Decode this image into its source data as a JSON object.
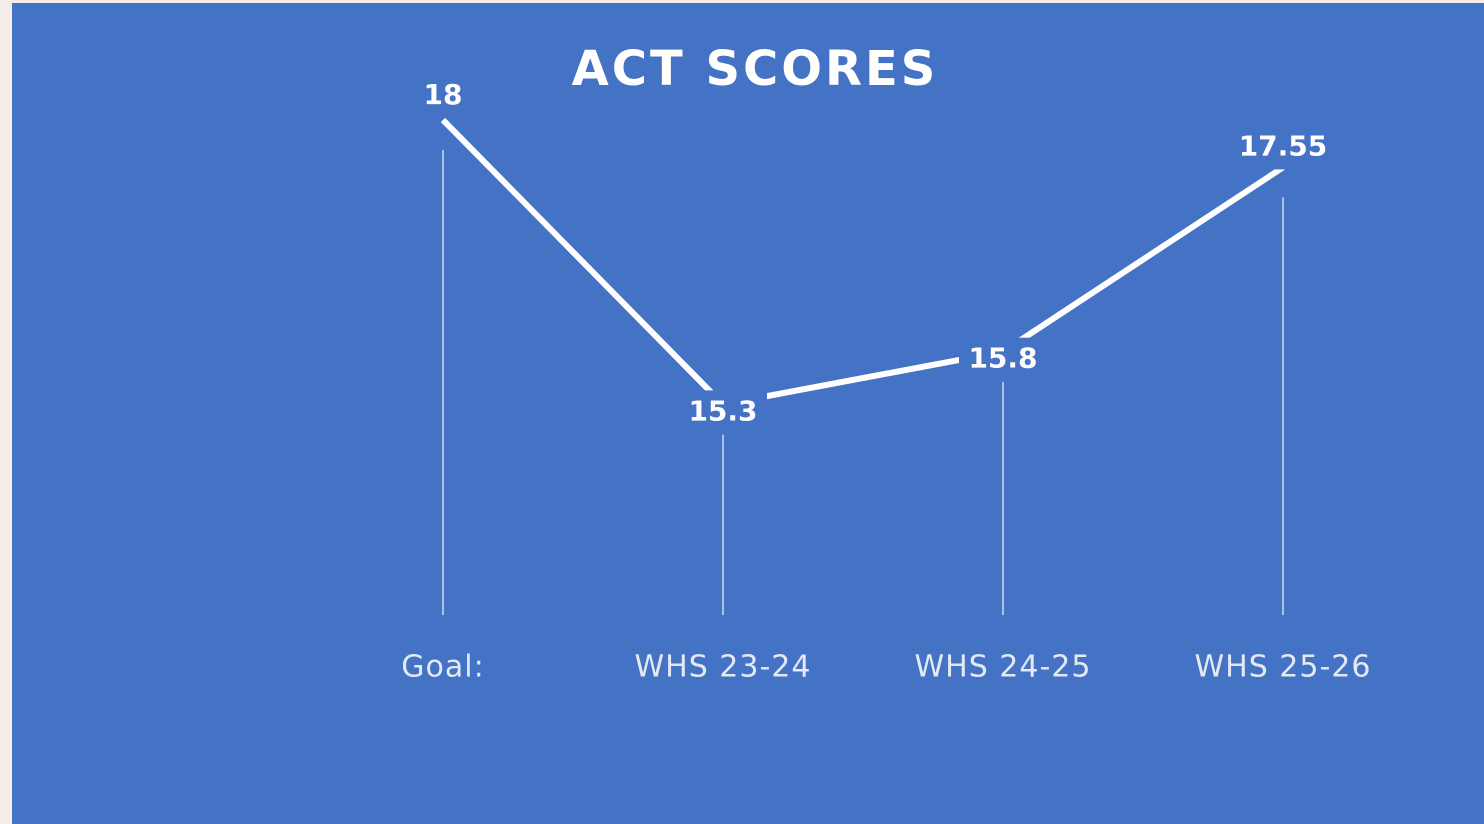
{
  "chart_data": {
    "type": "line",
    "title": "ACT SCORES",
    "categories": [
      "Goal:",
      "WHS 23-24",
      "WHS 24-25",
      "WHS 25-26"
    ],
    "values": [
      18,
      15.3,
      15.8,
      17.55
    ],
    "color": "#ffffff",
    "ylim": [
      13.3,
      18
    ]
  }
}
